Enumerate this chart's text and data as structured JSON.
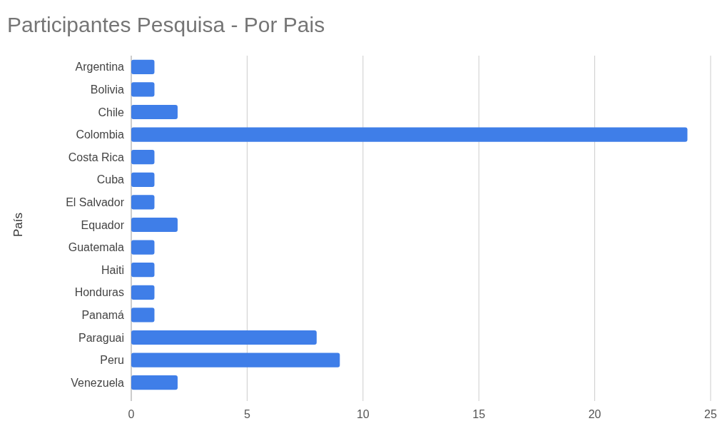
{
  "chart_data": {
    "type": "bar",
    "orientation": "horizontal",
    "title": "Participantes Pesquisa - Por Pais",
    "ylabel": "País",
    "categories": [
      "Argentina",
      "Bolivia",
      "Chile",
      "Colombia",
      "Costa Rica",
      "Cuba",
      "El Salvador",
      "Equador",
      "Guatemala",
      "Haiti",
      "Honduras",
      "Panamá",
      "Paraguai",
      "Peru",
      "Venezuela"
    ],
    "values": [
      1,
      1,
      2,
      24,
      1,
      1,
      1,
      2,
      1,
      1,
      1,
      1,
      8,
      9,
      2
    ],
    "color": "#3f7ee8",
    "xlim": [
      0,
      25
    ],
    "xticks": [
      0,
      5,
      10,
      15,
      20,
      25
    ],
    "grid": "x"
  }
}
